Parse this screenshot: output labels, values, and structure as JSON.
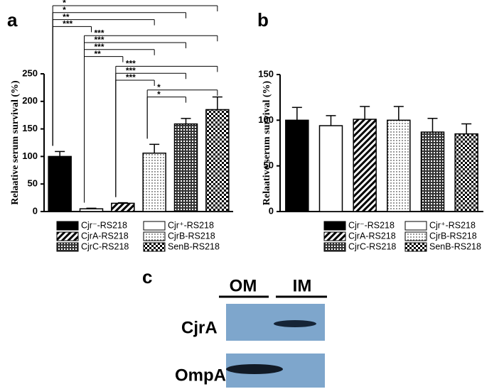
{
  "chart_data": [
    {
      "type": "bar",
      "panel": "a",
      "ylabel": "Relaative serum survival (%)",
      "categories": [
        "Cjr⁻-RS218",
        "Cjr⁺-RS218",
        "CjrA-RS218",
        "CjrB-RS218",
        "CjrC-RS218",
        "SenB-RS218"
      ],
      "values": [
        100,
        5,
        15,
        106,
        159,
        185
      ],
      "errors": [
        9,
        1,
        1,
        16,
        10,
        23
      ],
      "patterns": [
        "solid",
        "open",
        "hatch",
        "dots",
        "grid",
        "checker"
      ],
      "ylim": [
        0,
        250
      ],
      "yticks": [
        0,
        50,
        100,
        150,
        200,
        250
      ],
      "significance": [
        {
          "pair": [
            0,
            5
          ],
          "label": "*"
        },
        {
          "pair": [
            0,
            4
          ],
          "label": "*"
        },
        {
          "pair": [
            0,
            3
          ],
          "label": "**"
        },
        {
          "pair": [
            0,
            1
          ],
          "label": "***"
        },
        {
          "pair": [
            1,
            5
          ],
          "label": "***"
        },
        {
          "pair": [
            1,
            4
          ],
          "label": "***"
        },
        {
          "pair": [
            1,
            3
          ],
          "label": "***"
        },
        {
          "pair": [
            1,
            2
          ],
          "label": "**"
        },
        {
          "pair": [
            2,
            5
          ],
          "label": "***"
        },
        {
          "pair": [
            2,
            4
          ],
          "label": "***"
        },
        {
          "pair": [
            2,
            3
          ],
          "label": "***"
        },
        {
          "pair": [
            3,
            5
          ],
          "label": "*"
        },
        {
          "pair": [
            3,
            4
          ],
          "label": "*"
        }
      ]
    },
    {
      "type": "bar",
      "panel": "b",
      "ylabel": "Relaative serum survival (%)",
      "categories": [
        "Cjr⁻-RS218",
        "Cjr⁺-RS218",
        "CjrA-RS218",
        "CjrB-RS218",
        "CjrC-RS218",
        "SenB-RS218"
      ],
      "values": [
        100,
        94,
        101,
        100,
        87,
        85
      ],
      "errors": [
        14,
        11,
        14,
        15,
        15,
        11
      ],
      "patterns": [
        "solid",
        "open",
        "hatch",
        "dots",
        "grid",
        "checker"
      ],
      "ylim": [
        0,
        150
      ],
      "yticks": [
        0,
        50,
        100,
        150
      ]
    }
  ],
  "blot": {
    "panel": "c",
    "columns": [
      "OM",
      "IM"
    ],
    "rows": [
      "CjrA",
      "OmpA"
    ]
  }
}
